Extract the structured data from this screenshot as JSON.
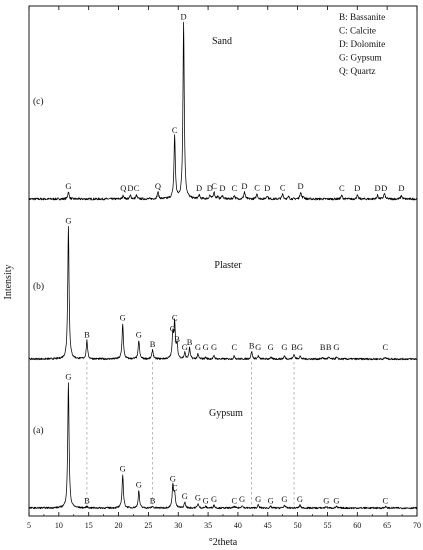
{
  "chart_data": {
    "type": "line",
    "xlabel": "°2theta",
    "ylabel": "Intensity",
    "xlim": [
      5,
      70
    ],
    "x_ticks": [
      5,
      10,
      15,
      20,
      25,
      30,
      35,
      40,
      45,
      50,
      55,
      60,
      65,
      70
    ],
    "x_tick_labels": [
      "5",
      "10",
      "15",
      "20",
      "25",
      "30",
      "35",
      "40",
      "45",
      "50",
      "55",
      "60",
      "65",
      "70"
    ],
    "grid": false,
    "legend_position": "top-right",
    "legend": [
      {
        "code": "B",
        "text": "B: Bassanite"
      },
      {
        "code": "C",
        "text": "C: Calcite"
      },
      {
        "code": "D",
        "text": "D: Dolomite"
      },
      {
        "code": "G",
        "text": "G: Gypsum"
      },
      {
        "code": "Q",
        "text": "Q: Quartz"
      }
    ],
    "series": [
      {
        "name": "Sand",
        "panel_label": "(c)",
        "peaks": [
          {
            "x": 11.6,
            "h": 0.04,
            "label": "G"
          },
          {
            "x": 20.8,
            "h": 0.02,
            "label": "Q"
          },
          {
            "x": 22.0,
            "h": 0.02,
            "label": "D"
          },
          {
            "x": 23.0,
            "h": 0.02,
            "label": "C"
          },
          {
            "x": 26.6,
            "h": 0.04,
            "label": "Q"
          },
          {
            "x": 29.4,
            "h": 0.35,
            "label": "C"
          },
          {
            "x": 30.9,
            "h": 0.98,
            "label": "D"
          },
          {
            "x": 33.5,
            "h": 0.02,
            "label": "D"
          },
          {
            "x": 35.3,
            "h": 0.02,
            "label": "D"
          },
          {
            "x": 36.0,
            "h": 0.04,
            "label": "C"
          },
          {
            "x": 37.4,
            "h": 0.02,
            "label": "D"
          },
          {
            "x": 39.4,
            "h": 0.02,
            "label": "C"
          },
          {
            "x": 41.1,
            "h": 0.04,
            "label": "D"
          },
          {
            "x": 43.2,
            "h": 0.03,
            "label": "C"
          },
          {
            "x": 44.9,
            "h": 0.02,
            "label": "D"
          },
          {
            "x": 47.5,
            "h": 0.03,
            "label": "C"
          },
          {
            "x": 50.5,
            "h": 0.04,
            "label": "D"
          },
          {
            "x": 57.4,
            "h": 0.02,
            "label": "C"
          },
          {
            "x": 60.0,
            "h": 0.02,
            "label": "D"
          },
          {
            "x": 63.4,
            "h": 0.02,
            "label": "D"
          },
          {
            "x": 64.5,
            "h": 0.02,
            "label": "D"
          },
          {
            "x": 67.4,
            "h": 0.02,
            "label": "D"
          }
        ],
        "extra_peaks": [
          36.6,
          48.5,
          51.0,
          64.6
        ]
      },
      {
        "name": "Plaster",
        "panel_label": "(b)",
        "peaks": [
          {
            "x": 11.6,
            "h": 0.86,
            "label": "G"
          },
          {
            "x": 14.7,
            "h": 0.12,
            "label": "B"
          },
          {
            "x": 20.7,
            "h": 0.23,
            "label": "G"
          },
          {
            "x": 23.4,
            "h": 0.12,
            "label": "G"
          },
          {
            "x": 25.7,
            "h": 0.06,
            "label": "B"
          },
          {
            "x": 29.1,
            "h": 0.16,
            "label": "G"
          },
          {
            "x": 29.4,
            "h": 0.23,
            "label": "C"
          },
          {
            "x": 29.8,
            "h": 0.09,
            "label": "B"
          },
          {
            "x": 31.1,
            "h": 0.04,
            "label": "G"
          },
          {
            "x": 31.9,
            "h": 0.07,
            "label": "B"
          },
          {
            "x": 33.3,
            "h": 0.03,
            "label": "G"
          },
          {
            "x": 34.6,
            "h": 0.01,
            "label": "G"
          },
          {
            "x": 36.0,
            "h": 0.02,
            "label": "G"
          },
          {
            "x": 39.4,
            "h": 0.02,
            "label": "C"
          },
          {
            "x": 42.3,
            "h": 0.05,
            "label": "B"
          },
          {
            "x": 43.4,
            "h": 0.02,
            "label": "G"
          },
          {
            "x": 45.5,
            "h": 0.01,
            "label": "G"
          },
          {
            "x": 47.8,
            "h": 0.02,
            "label": "G"
          },
          {
            "x": 49.4,
            "h": 0.03,
            "label": "B"
          },
          {
            "x": 50.4,
            "h": 0.02,
            "label": "G"
          },
          {
            "x": 54.2,
            "h": 0.01,
            "label": "B"
          },
          {
            "x": 55.2,
            "h": 0.01,
            "label": "B"
          },
          {
            "x": 56.5,
            "h": 0.01,
            "label": "G"
          },
          {
            "x": 64.7,
            "h": 0.01,
            "label": "C"
          }
        ]
      },
      {
        "name": "Gypsum",
        "panel_label": "(a)",
        "peaks": [
          {
            "x": 11.6,
            "h": 0.86,
            "label": "G"
          },
          {
            "x": 14.7,
            "h": 0.01,
            "label": "B"
          },
          {
            "x": 20.7,
            "h": 0.23,
            "label": "G"
          },
          {
            "x": 23.4,
            "h": 0.12,
            "label": "G"
          },
          {
            "x": 25.7,
            "h": 0.01,
            "label": "B"
          },
          {
            "x": 29.1,
            "h": 0.16,
            "label": "G"
          },
          {
            "x": 29.4,
            "h": 0.1,
            "label": "C"
          },
          {
            "x": 31.1,
            "h": 0.04,
            "label": "G"
          },
          {
            "x": 33.3,
            "h": 0.03,
            "label": "G"
          },
          {
            "x": 34.6,
            "h": 0.01,
            "label": "G"
          },
          {
            "x": 36.0,
            "h": 0.02,
            "label": "G"
          },
          {
            "x": 39.4,
            "h": 0.01,
            "label": "C"
          },
          {
            "x": 40.7,
            "h": 0.02,
            "label": "G"
          },
          {
            "x": 43.4,
            "h": 0.02,
            "label": "G"
          },
          {
            "x": 45.5,
            "h": 0.01,
            "label": "G"
          },
          {
            "x": 47.8,
            "h": 0.02,
            "label": "G"
          },
          {
            "x": 50.4,
            "h": 0.02,
            "label": "G"
          },
          {
            "x": 54.8,
            "h": 0.01,
            "label": "G"
          },
          {
            "x": 56.5,
            "h": 0.01,
            "label": "G"
          },
          {
            "x": 64.7,
            "h": 0.01,
            "label": "C"
          }
        ]
      }
    ],
    "reference_lines_x": [
      14.7,
      25.7,
      42.3,
      49.4
    ]
  }
}
